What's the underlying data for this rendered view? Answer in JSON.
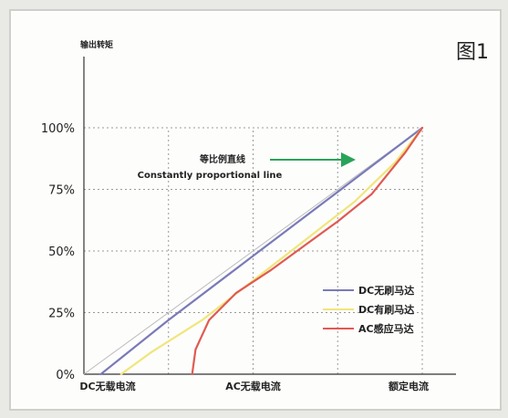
{
  "chart_data": {
    "type": "line",
    "figure_label": "图1",
    "title": "",
    "ylabel": "输出转矩",
    "xlabel": "",
    "ylim": [
      0,
      100
    ],
    "xlim": [
      0,
      100
    ],
    "y_ticks": [
      {
        "value": 0,
        "label": "0%"
      },
      {
        "value": 25,
        "label": "25%"
      },
      {
        "value": 50,
        "label": "50%"
      },
      {
        "value": 75,
        "label": "75%"
      },
      {
        "value": 100,
        "label": "100%"
      }
    ],
    "x_ticks": [
      {
        "value": 7,
        "label": "DC无载电流"
      },
      {
        "value": 50,
        "label": "AC无载电流"
      },
      {
        "value": 100,
        "label": "额定电流"
      }
    ],
    "annotation": {
      "line1": "等比例直线",
      "line2": "Constantly proportional line"
    },
    "reference_line": {
      "name": "",
      "color": "#bcbcbc",
      "points": [
        [
          0,
          0
        ],
        [
          100,
          100
        ]
      ]
    },
    "series": [
      {
        "name": "DC无刷马达",
        "color": "#7a7ab8",
        "points": [
          [
            5,
            0
          ],
          [
            25,
            22
          ],
          [
            50,
            48
          ],
          [
            75,
            74
          ],
          [
            100,
            100
          ]
        ]
      },
      {
        "name": "DC有刷马达",
        "color": "#f0e67a",
        "points": [
          [
            11,
            0
          ],
          [
            20,
            9
          ],
          [
            35,
            22
          ],
          [
            50,
            38
          ],
          [
            65,
            54
          ],
          [
            80,
            70
          ],
          [
            92,
            86
          ],
          [
            100,
            100
          ]
        ]
      },
      {
        "name": "AC感应马达",
        "color": "#e05a52",
        "points": [
          [
            32,
            0
          ],
          [
            33,
            10
          ],
          [
            37,
            22
          ],
          [
            45,
            33
          ],
          [
            55,
            42
          ],
          [
            65,
            52
          ],
          [
            75,
            62
          ],
          [
            85,
            73
          ],
          [
            95,
            90
          ],
          [
            100,
            100
          ]
        ]
      }
    ],
    "guide_lines_x": [
      25,
      50,
      75,
      100
    ],
    "legend_position": "right"
  }
}
